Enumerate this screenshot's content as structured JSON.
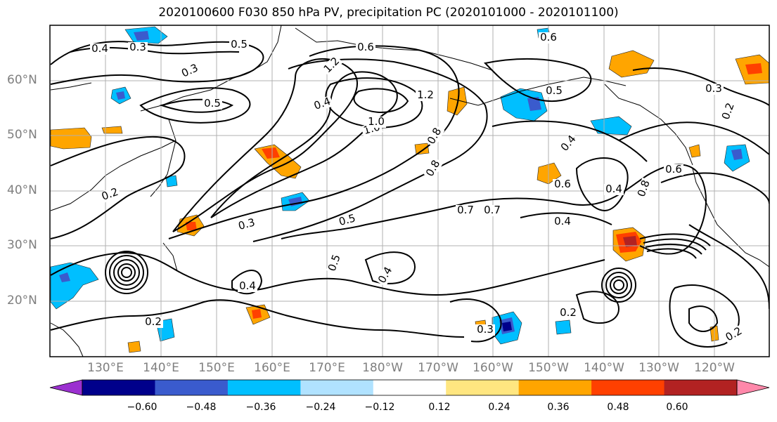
{
  "title": "2020100600 F030 850 hPa PV, precipitation PC (2020101000 - 2020101100)",
  "latitude_labels": [
    "60°N",
    "50°N",
    "40°N",
    "30°N",
    "20°N"
  ],
  "longitude_labels": [
    "130°E",
    "140°E",
    "150°E",
    "160°E",
    "170°E",
    "180°W",
    "170°W",
    "160°W",
    "150°W",
    "140°W",
    "130°W",
    "120°W"
  ],
  "contour_labels": [
    "0.4",
    "0.3",
    "0.5",
    "0.6",
    "1.2",
    "1.0",
    "0.8",
    "0.7",
    "0.5",
    "0.3",
    "0.2",
    "0.6",
    "0.4",
    "0.5",
    "0.3",
    "0.2",
    "0.6",
    "0.4",
    "0.8",
    "0.6",
    "0.4",
    "0.2",
    "0.4",
    "0.2",
    "0.3",
    "0.4",
    "0.2",
    "0.3",
    "0.5",
    "0.4",
    "0.7",
    "0.5",
    "0.8",
    "1.0",
    "1.2"
  ],
  "colorbar": {
    "ticks": [
      "−0.60",
      "−0.48",
      "−0.36",
      "−0.24",
      "−0.12",
      "0.12",
      "0.24",
      "0.36",
      "0.48",
      "0.60"
    ],
    "colors": [
      "#9b30d0",
      "#00008b",
      "#3a5bcd",
      "#00bfff",
      "#b0e2ff",
      "#ffffff",
      "#ffe680",
      "#ffa500",
      "#ff4000",
      "#b22222",
      "#ff88aa"
    ]
  }
}
